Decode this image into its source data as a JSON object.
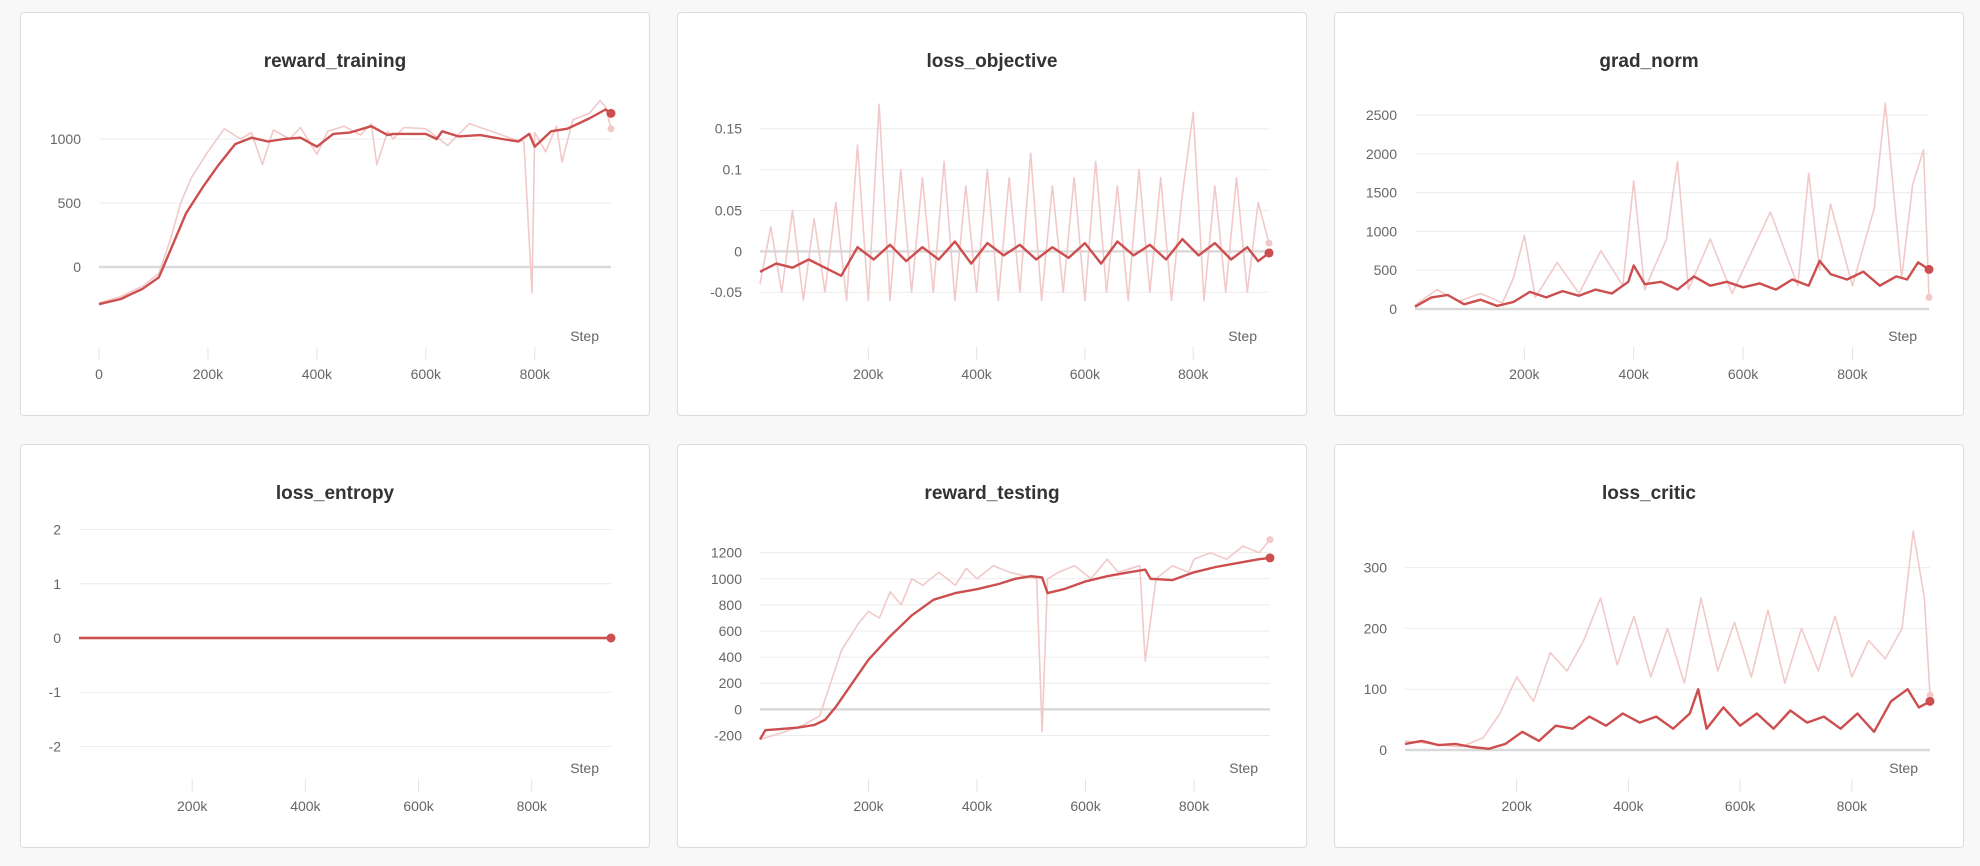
{
  "colors": {
    "line": "#cc4e4e",
    "raw": "#f2c9c9",
    "grid": "#ececec",
    "zero": "#d9d9d9"
  },
  "chart_data": [
    {
      "type": "line",
      "title": "reward_training",
      "xlabel": "Step",
      "ylim": [
        -320,
        1320
      ],
      "xlim": [
        0,
        940000
      ],
      "yticks": [
        {
          "v": 0,
          "l": "0"
        },
        {
          "v": 500,
          "l": "500"
        },
        {
          "v": 1000,
          "l": "1000"
        }
      ],
      "xticks": [
        {
          "v": 0,
          "l": "0"
        },
        {
          "v": 200000,
          "l": "200k"
        },
        {
          "v": 400000,
          "l": "400k"
        },
        {
          "v": 600000,
          "l": "600k"
        },
        {
          "v": 800000,
          "l": "800k"
        }
      ],
      "grid": true,
      "smoothed": {
        "x": [
          0,
          40000,
          80000,
          110000,
          130000,
          160000,
          190000,
          220000,
          250000,
          280000,
          310000,
          340000,
          370000,
          400000,
          430000,
          460000,
          500000,
          530000,
          540000,
          560000,
          600000,
          620000,
          630000,
          660000,
          700000,
          740000,
          770000,
          790000,
          800000,
          830000,
          860000,
          900000,
          930000,
          940000
        ],
        "y": [
          -290,
          -250,
          -170,
          -80,
          120,
          420,
          620,
          800,
          960,
          1010,
          980,
          1000,
          1010,
          940,
          1040,
          1050,
          1100,
          1030,
          1040,
          1040,
          1040,
          1000,
          1060,
          1020,
          1030,
          1000,
          980,
          1040,
          940,
          1060,
          1080,
          1160,
          1230,
          1200
        ]
      },
      "raw": {
        "x": [
          0,
          40000,
          80000,
          110000,
          130000,
          150000,
          170000,
          200000,
          230000,
          260000,
          280000,
          300000,
          320000,
          350000,
          370000,
          400000,
          420000,
          450000,
          480000,
          500000,
          510000,
          530000,
          540000,
          560000,
          600000,
          640000,
          680000,
          720000,
          760000,
          780000,
          795000,
          800000,
          820000,
          840000,
          850000,
          870000,
          900000,
          920000,
          930000,
          940000
        ],
        "y": [
          -280,
          -230,
          -150,
          -50,
          200,
          500,
          700,
          900,
          1080,
          1000,
          1050,
          800,
          1070,
          1000,
          1090,
          880,
          1060,
          1100,
          1030,
          1120,
          800,
          1060,
          1000,
          1090,
          1080,
          950,
          1120,
          1060,
          1000,
          980,
          -200,
          1050,
          900,
          1100,
          820,
          1150,
          1200,
          1300,
          1250,
          1080
        ]
      }
    },
    {
      "type": "line",
      "title": "loss_objective",
      "xlabel": "Step",
      "ylim": [
        -0.073,
        0.19
      ],
      "xlim": [
        0,
        940000
      ],
      "yticks": [
        {
          "v": -0.05,
          "l": "-0.05"
        },
        {
          "v": 0,
          "l": "0"
        },
        {
          "v": 0.05,
          "l": "0.05"
        },
        {
          "v": 0.1,
          "l": "0.1"
        },
        {
          "v": 0.15,
          "l": "0.15"
        }
      ],
      "xticks": [
        {
          "v": 200000,
          "l": "200k"
        },
        {
          "v": 400000,
          "l": "400k"
        },
        {
          "v": 600000,
          "l": "600k"
        },
        {
          "v": 800000,
          "l": "800k"
        }
      ],
      "grid": true,
      "smoothed": {
        "x": [
          0,
          30000,
          60000,
          90000,
          120000,
          150000,
          180000,
          210000,
          240000,
          270000,
          300000,
          330000,
          360000,
          390000,
          420000,
          450000,
          480000,
          510000,
          540000,
          570000,
          600000,
          630000,
          660000,
          690000,
          720000,
          750000,
          780000,
          810000,
          840000,
          870000,
          900000,
          920000,
          940000
        ],
        "y": [
          -0.025,
          -0.015,
          -0.02,
          -0.01,
          -0.02,
          -0.03,
          0.005,
          -0.01,
          0.008,
          -0.012,
          0.005,
          -0.01,
          0.012,
          -0.015,
          0.01,
          -0.005,
          0.008,
          -0.01,
          0.005,
          -0.008,
          0.01,
          -0.015,
          0.012,
          -0.005,
          0.008,
          -0.01,
          0.015,
          -0.005,
          0.01,
          -0.01,
          0.005,
          -0.012,
          -0.002
        ]
      },
      "raw": {
        "x": [
          0,
          20000,
          40000,
          60000,
          80000,
          100000,
          120000,
          140000,
          160000,
          180000,
          200000,
          220000,
          240000,
          260000,
          280000,
          300000,
          320000,
          340000,
          360000,
          380000,
          400000,
          420000,
          440000,
          460000,
          480000,
          500000,
          520000,
          540000,
          560000,
          580000,
          600000,
          620000,
          640000,
          660000,
          680000,
          700000,
          720000,
          740000,
          760000,
          780000,
          800000,
          820000,
          840000,
          860000,
          880000,
          900000,
          920000,
          940000
        ],
        "y": [
          -0.04,
          0.03,
          -0.05,
          0.05,
          -0.06,
          0.04,
          -0.05,
          0.06,
          -0.06,
          0.13,
          -0.06,
          0.18,
          -0.06,
          0.1,
          -0.05,
          0.09,
          -0.05,
          0.11,
          -0.06,
          0.08,
          -0.05,
          0.1,
          -0.06,
          0.09,
          -0.05,
          0.12,
          -0.06,
          0.08,
          -0.05,
          0.09,
          -0.06,
          0.11,
          -0.05,
          0.08,
          -0.06,
          0.1,
          -0.05,
          0.09,
          -0.06,
          0.07,
          0.17,
          -0.06,
          0.08,
          -0.05,
          0.09,
          -0.05,
          0.06,
          0.01
        ]
      }
    },
    {
      "type": "line",
      "title": "grad_norm",
      "xlabel": "Step",
      "ylim": [
        0,
        2680
      ],
      "xlim": [
        0,
        940000
      ],
      "yticks": [
        {
          "v": 0,
          "l": "0"
        },
        {
          "v": 500,
          "l": "500"
        },
        {
          "v": 1000,
          "l": "1000"
        },
        {
          "v": 1500,
          "l": "1500"
        },
        {
          "v": 2000,
          "l": "2000"
        },
        {
          "v": 2500,
          "l": "2500"
        }
      ],
      "xticks": [
        {
          "v": 200000,
          "l": "200k"
        },
        {
          "v": 400000,
          "l": "400k"
        },
        {
          "v": 600000,
          "l": "600k"
        },
        {
          "v": 800000,
          "l": "800k"
        }
      ],
      "grid": true,
      "smoothed": {
        "x": [
          0,
          30000,
          60000,
          90000,
          120000,
          150000,
          180000,
          210000,
          240000,
          270000,
          300000,
          330000,
          360000,
          390000,
          400000,
          420000,
          450000,
          480000,
          510000,
          540000,
          570000,
          600000,
          630000,
          660000,
          690000,
          720000,
          740000,
          760000,
          790000,
          820000,
          850000,
          880000,
          900000,
          920000,
          940000
        ],
        "y": [
          30,
          150,
          180,
          60,
          120,
          40,
          90,
          220,
          150,
          230,
          170,
          250,
          200,
          350,
          560,
          320,
          350,
          250,
          420,
          300,
          350,
          280,
          330,
          250,
          380,
          300,
          620,
          450,
          380,
          480,
          300,
          420,
          380,
          600,
          510
        ]
      },
      "raw": {
        "x": [
          0,
          40000,
          80000,
          120000,
          160000,
          180000,
          200000,
          220000,
          260000,
          300000,
          340000,
          380000,
          400000,
          420000,
          460000,
          480000,
          500000,
          540000,
          580000,
          620000,
          650000,
          700000,
          720000,
          740000,
          760000,
          800000,
          840000,
          860000,
          890000,
          910000,
          930000,
          940000
        ],
        "y": [
          50,
          250,
          100,
          200,
          80,
          400,
          950,
          150,
          600,
          200,
          750,
          300,
          1650,
          250,
          900,
          1900,
          250,
          900,
          200,
          800,
          1250,
          300,
          1750,
          500,
          1350,
          300,
          1300,
          2650,
          400,
          1600,
          2050,
          150
        ]
      }
    },
    {
      "type": "line",
      "title": "loss_entropy",
      "xlabel": "Step",
      "ylim": [
        -2.12,
        2.12
      ],
      "xlim": [
        0,
        940000
      ],
      "yticks": [
        {
          "v": -2,
          "l": "-2"
        },
        {
          "v": -1,
          "l": "-1"
        },
        {
          "v": 0,
          "l": "0"
        },
        {
          "v": 1,
          "l": "1"
        },
        {
          "v": 2,
          "l": "2"
        }
      ],
      "xticks": [
        {
          "v": 200000,
          "l": "200k"
        },
        {
          "v": 400000,
          "l": "400k"
        },
        {
          "v": 600000,
          "l": "600k"
        },
        {
          "v": 800000,
          "l": "800k"
        }
      ],
      "grid": true,
      "smoothed": {
        "x": [
          0,
          940000
        ],
        "y": [
          0,
          0
        ]
      },
      "raw": {
        "x": [],
        "y": []
      }
    },
    {
      "type": "line",
      "title": "reward_testing",
      "xlabel": "Step",
      "ylim": [
        -250,
        1320
      ],
      "xlim": [
        0,
        940000
      ],
      "yticks": [
        {
          "v": -200,
          "l": "-200"
        },
        {
          "v": 0,
          "l": "0"
        },
        {
          "v": 200,
          "l": "200"
        },
        {
          "v": 400,
          "l": "400"
        },
        {
          "v": 600,
          "l": "600"
        },
        {
          "v": 800,
          "l": "800"
        },
        {
          "v": 1000,
          "l": "1000"
        },
        {
          "v": 1200,
          "l": "1200"
        }
      ],
      "xticks": [
        {
          "v": 200000,
          "l": "200k"
        },
        {
          "v": 400000,
          "l": "400k"
        },
        {
          "v": 600000,
          "l": "600k"
        },
        {
          "v": 800000,
          "l": "800k"
        }
      ],
      "grid": true,
      "smoothed": {
        "x": [
          0,
          10000,
          40000,
          70000,
          100000,
          120000,
          140000,
          170000,
          200000,
          240000,
          280000,
          320000,
          360000,
          400000,
          440000,
          470000,
          500000,
          520000,
          530000,
          560000,
          600000,
          640000,
          680000,
          710000,
          720000,
          760000,
          800000,
          840000,
          880000,
          920000,
          940000
        ],
        "y": [
          -230,
          -160,
          -150,
          -140,
          -120,
          -80,
          20,
          200,
          380,
          560,
          720,
          840,
          890,
          920,
          960,
          1000,
          1020,
          1010,
          890,
          920,
          980,
          1020,
          1050,
          1070,
          1000,
          990,
          1050,
          1090,
          1120,
          1150,
          1160
        ]
      },
      "raw": {
        "x": [
          0,
          40000,
          80000,
          110000,
          130000,
          150000,
          180000,
          200000,
          220000,
          240000,
          260000,
          280000,
          300000,
          330000,
          360000,
          380000,
          400000,
          430000,
          460000,
          490000,
          510000,
          520000,
          530000,
          550000,
          580000,
          610000,
          640000,
          660000,
          700000,
          710000,
          730000,
          760000,
          790000,
          800000,
          830000,
          860000,
          890000,
          920000,
          940000
        ],
        "y": [
          -230,
          -180,
          -120,
          -50,
          200,
          450,
          650,
          750,
          700,
          900,
          800,
          1000,
          950,
          1050,
          950,
          1080,
          1000,
          1100,
          1050,
          1020,
          1000,
          -170,
          1000,
          1050,
          1100,
          1000,
          1150,
          1050,
          1100,
          370,
          1000,
          1100,
          1050,
          1150,
          1200,
          1150,
          1250,
          1200,
          1300
        ]
      }
    },
    {
      "type": "line",
      "title": "loss_critic",
      "xlabel": "Step",
      "ylim": [
        0,
        370
      ],
      "xlim": [
        0,
        940000
      ],
      "yticks": [
        {
          "v": 0,
          "l": "0"
        },
        {
          "v": 100,
          "l": "100"
        },
        {
          "v": 200,
          "l": "200"
        },
        {
          "v": 300,
          "l": "300"
        }
      ],
      "xticks": [
        {
          "v": 200000,
          "l": "200k"
        },
        {
          "v": 400000,
          "l": "400k"
        },
        {
          "v": 600000,
          "l": "600k"
        },
        {
          "v": 800000,
          "l": "800k"
        }
      ],
      "grid": true,
      "smoothed": {
        "x": [
          0,
          30000,
          60000,
          90000,
          120000,
          150000,
          180000,
          210000,
          240000,
          270000,
          300000,
          330000,
          360000,
          390000,
          420000,
          450000,
          480000,
          510000,
          525000,
          540000,
          570000,
          600000,
          630000,
          660000,
          690000,
          720000,
          750000,
          780000,
          810000,
          840000,
          870000,
          900000,
          920000,
          940000
        ],
        "y": [
          10,
          15,
          8,
          10,
          5,
          2,
          10,
          30,
          15,
          40,
          35,
          55,
          40,
          60,
          45,
          55,
          35,
          60,
          100,
          35,
          70,
          40,
          60,
          35,
          65,
          45,
          55,
          35,
          60,
          30,
          80,
          100,
          70,
          80
        ]
      },
      "raw": {
        "x": [
          0,
          50000,
          100000,
          140000,
          170000,
          200000,
          230000,
          260000,
          290000,
          320000,
          350000,
          380000,
          410000,
          440000,
          470000,
          500000,
          530000,
          560000,
          590000,
          620000,
          650000,
          680000,
          710000,
          740000,
          770000,
          800000,
          830000,
          860000,
          890000,
          910000,
          930000,
          940000
        ],
        "y": [
          15,
          10,
          5,
          20,
          60,
          120,
          80,
          160,
          130,
          180,
          250,
          140,
          220,
          120,
          200,
          110,
          250,
          130,
          210,
          120,
          230,
          110,
          200,
          130,
          220,
          120,
          180,
          150,
          200,
          360,
          250,
          90
        ]
      }
    }
  ]
}
